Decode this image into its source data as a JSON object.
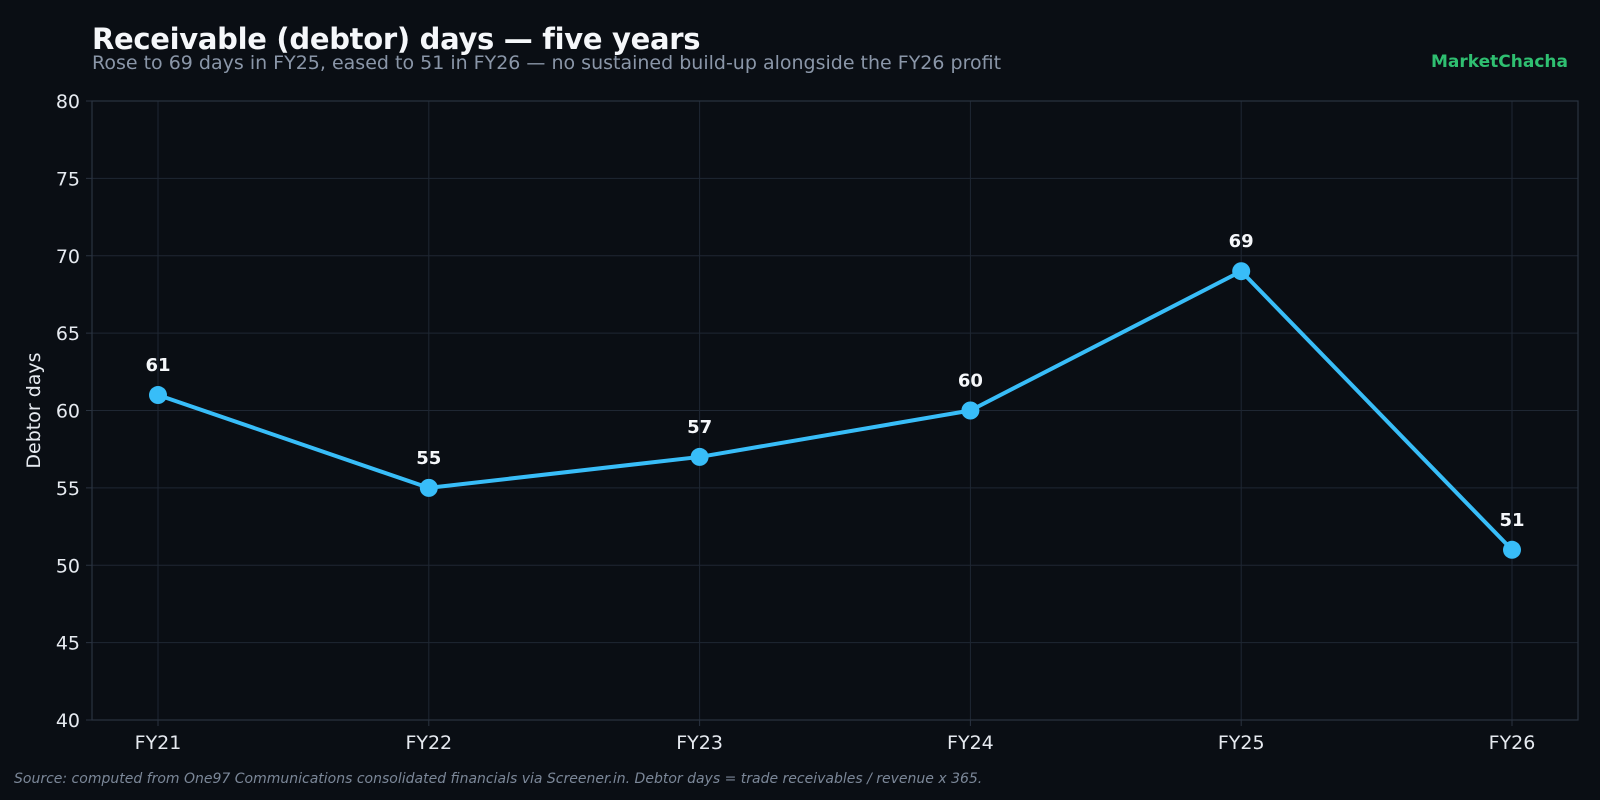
{
  "title": "Receivable (debtor) days — five years",
  "subtitle": "Rose to 69 days in FY25, eased to 51 in FY26 — no sustained build-up alongside the FY26 profit",
  "brand": "MarketChacha",
  "source": "Source: computed from One97 Communications consolidated financials via Screener.in. Debtor days = trade receivables / revenue x 365.",
  "colors": {
    "background": "#0a0e14",
    "line": "#38bdf8",
    "grid": "#1f2733",
    "axis": "#2a3340",
    "text": "#e6eaf0",
    "brand": "#2fbf71"
  },
  "chart_data": {
    "type": "line",
    "categories": [
      "FY21",
      "FY22",
      "FY23",
      "FY24",
      "FY25",
      "FY26"
    ],
    "series": [
      {
        "values": [
          61,
          55,
          57,
          60,
          69,
          51
        ]
      }
    ],
    "data_labels": [
      "61",
      "55",
      "57",
      "60",
      "69",
      "51"
    ],
    "xlabel": "",
    "ylabel": "Debtor days",
    "ylim": [
      40,
      80
    ],
    "yticks": [
      40,
      45,
      50,
      55,
      60,
      65,
      70,
      75,
      80
    ],
    "grid": true,
    "legend": false
  }
}
